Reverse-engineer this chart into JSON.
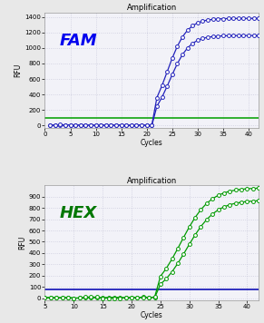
{
  "fam": {
    "title": "Amplification",
    "label": "FAM",
    "label_color": "#0000EE",
    "ylabel": "RFU",
    "xlabel": "Cycles",
    "xlim": [
      0,
      42
    ],
    "ylim": [
      -30,
      1450
    ],
    "yticks": [
      0,
      200,
      400,
      600,
      800,
      1000,
      1200,
      1400
    ],
    "xticks": [
      0,
      5,
      10,
      15,
      20,
      25,
      30,
      35,
      40
    ],
    "threshold": 100,
    "threshold_color": "#22aa22",
    "curve_color": "#2222bb",
    "x_start": 1,
    "x_end": 42,
    "baseline_end": 21,
    "midpoint1": 24.5,
    "midpoint2": 24.0,
    "top1": 1160,
    "top2": 1380,
    "steepness": 0.52
  },
  "hex": {
    "title": "Amplification",
    "label": "HEX",
    "label_color": "#007700",
    "ylabel": "RFU",
    "xlabel": "Cycles",
    "xlim": [
      5,
      42
    ],
    "ylim": [
      -20,
      1000
    ],
    "yticks": [
      0,
      100,
      200,
      300,
      400,
      500,
      600,
      700,
      800,
      900
    ],
    "xticks": [
      5,
      10,
      15,
      20,
      25,
      30,
      35,
      40
    ],
    "threshold": 75,
    "threshold_color": "#2222bb",
    "curve_color": "#009900",
    "x_start": 5,
    "x_end": 42,
    "baseline_end": 24,
    "midpoint1": 29.5,
    "midpoint2": 28.5,
    "top1": 870,
    "top2": 980,
    "steepness": 0.4
  },
  "fig_bg": "#e8e8e8",
  "plot_bg": "#f2f2f8",
  "grid_color": "#ccccdd"
}
